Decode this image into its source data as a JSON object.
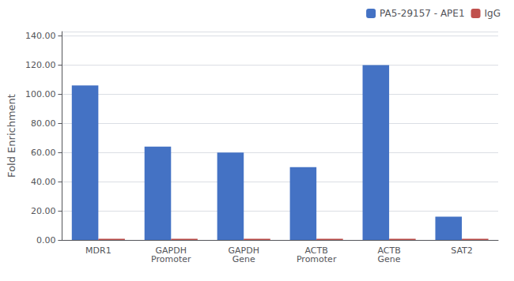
{
  "chart_data": {
    "type": "bar",
    "categories": [
      "MDR1",
      "GAPDH\nPromoter",
      "GAPDH\nGene",
      "ACTB\nPromoter",
      "ACTB\nGene",
      "SAT2"
    ],
    "series": [
      {
        "name": "PA5-29157 - APE1",
        "color": "#4472C4",
        "values": [
          106,
          64,
          60,
          50,
          120,
          16
        ]
      },
      {
        "name": "IgG",
        "color": "#C0504D",
        "values": [
          0.8,
          0.8,
          0.8,
          0.8,
          0.8,
          0.8
        ]
      }
    ],
    "ylabel": "Fold Enrichment",
    "ylim": [
      0,
      143
    ],
    "yticks": [
      {
        "value": 0,
        "label": "0.00"
      },
      {
        "value": 20,
        "label": "20.00"
      },
      {
        "value": 40,
        "label": "40.00"
      },
      {
        "value": 60,
        "label": "60.00"
      },
      {
        "value": 80,
        "label": "80.00"
      },
      {
        "value": 100,
        "label": "100.00"
      },
      {
        "value": 120,
        "label": "120.00"
      },
      {
        "value": 140,
        "label": "140.00"
      }
    ],
    "grid": true,
    "legend": "upper right"
  }
}
